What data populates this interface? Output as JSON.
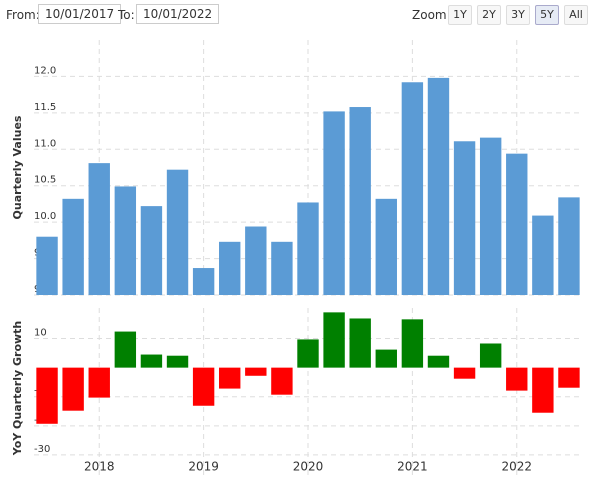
{
  "controls": {
    "from_label": "From:",
    "from_date": "10/01/2017",
    "to_label": "To:",
    "to_date": "10/01/2022",
    "zoom_label": "Zoom:",
    "zoom_buttons": [
      "1Y",
      "2Y",
      "3Y",
      "5Y",
      "All"
    ],
    "active_zoom": "5Y"
  },
  "chart_data": [
    {
      "type": "bar",
      "y_label": "Quarterly Values",
      "categories": [
        null,
        null,
        "2018",
        null,
        null,
        null,
        "2019",
        null,
        null,
        null,
        "2020",
        null,
        null,
        null,
        "2021",
        null,
        null,
        null,
        "2022",
        null,
        null
      ],
      "values": [
        9.8,
        10.32,
        10.81,
        10.49,
        10.22,
        10.72,
        9.37,
        9.73,
        9.94,
        9.73,
        10.27,
        11.52,
        11.58,
        10.32,
        11.92,
        11.98,
        11.11,
        11.16,
        10.94,
        10.09,
        10.34
      ],
      "color": "#5b9bd5",
      "ylim": [
        9.0,
        12.5
      ],
      "yticks": [
        {
          "value": 9.0,
          "label": "9.0"
        },
        9.5,
        {
          "value": 10.0,
          "label": "10.0"
        },
        10.5,
        {
          "value": 11.0,
          "label": "11.0"
        },
        11.5,
        {
          "value": 12.0,
          "label": "12.0"
        }
      ],
      "grid": true
    },
    {
      "type": "signed_bar",
      "y_label": "YoY Quarterly Growth",
      "categories": [
        null,
        null,
        "2018",
        null,
        null,
        null,
        "2019",
        null,
        null,
        null,
        "2020",
        null,
        null,
        null,
        "2021",
        null,
        null,
        null,
        "2022",
        null,
        null
      ],
      "values": [
        -19.3,
        -14.8,
        -10.3,
        12.4,
        4.5,
        4.1,
        -13.1,
        -7.2,
        -2.8,
        -9.3,
        9.7,
        19.0,
        16.9,
        6.2,
        16.6,
        4.1,
        -3.8,
        8.3,
        -7.9,
        -15.5,
        -6.9
      ],
      "positive_color": "#008000",
      "negative_color": "#ff0000",
      "ylim": [
        -34.5,
        20.5
      ],
      "yticks": [
        10,
        -10,
        -20,
        -30
      ],
      "grid": true
    }
  ]
}
